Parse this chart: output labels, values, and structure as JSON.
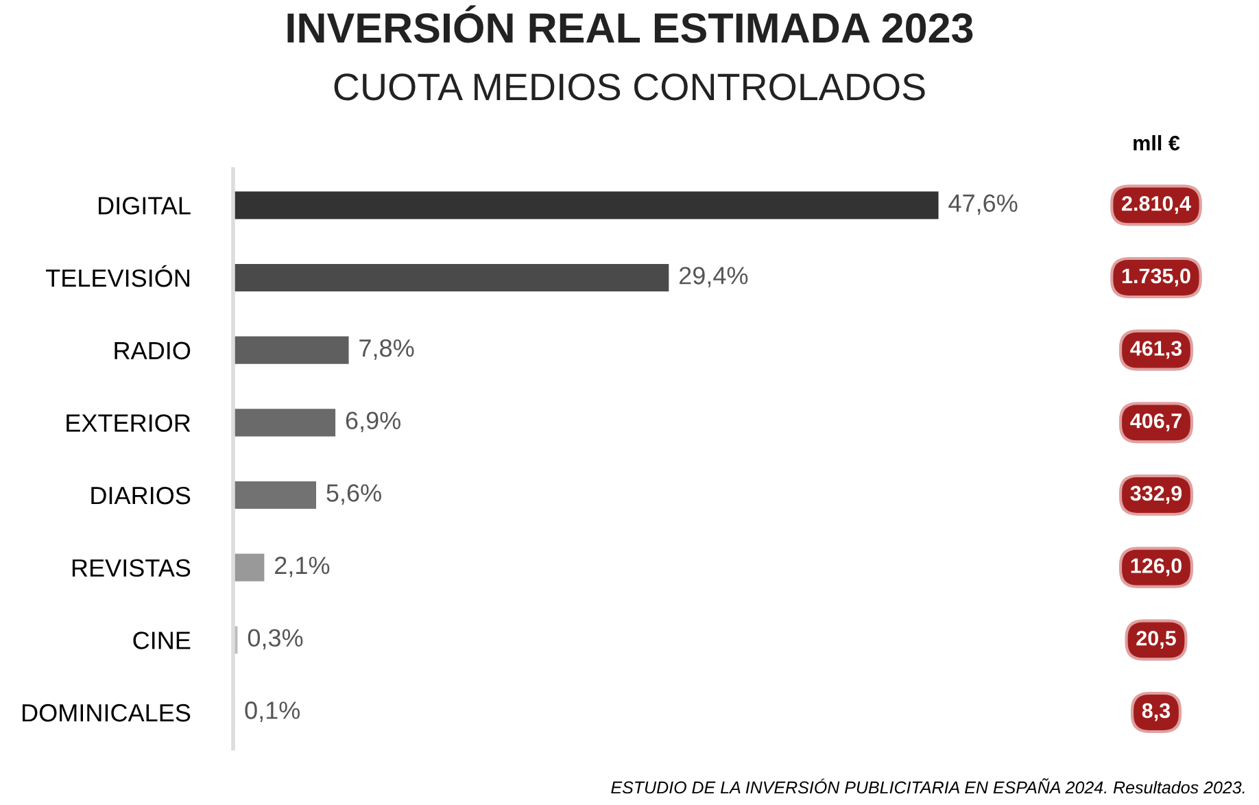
{
  "chart_data": {
    "type": "bar",
    "orientation": "horizontal",
    "title": "INVERSIÓN REAL ESTIMADA 2023",
    "subtitle": "CUOTA MEDIOS CONTROLADOS",
    "categories": [
      "DIGITAL",
      "TELEVISIÓN",
      "RADIO",
      "EXTERIOR",
      "DIARIOS",
      "REVISTAS",
      "CINE",
      "DOMINICALES"
    ],
    "values": [
      47.6,
      29.4,
      7.8,
      6.9,
      5.6,
      2.1,
      0.3,
      0.1
    ],
    "colors": [
      "#333333",
      "#4a4a4a",
      "#5f5f5f",
      "#6a6a6a",
      "#727272",
      "#999999",
      "#bdbdbd",
      "#cfcfcf"
    ],
    "value_labels": [
      "47,6%",
      "29,4%",
      "7,8%",
      "6,9%",
      "5,6%",
      "2,1%",
      "0,3%",
      "0,1%"
    ],
    "tick_labels": "y",
    "grid": false,
    "legend": false,
    "annotations": [
      "mll €",
      "2.810,4",
      "1.735,0",
      "461,3",
      "406,7",
      "332,9",
      "126,0",
      "20,5",
      "8,3",
      "ESTUDIO DE LA INVERSIÓN PUBLICITARIA EN ESPAÑA 2024. Resultados 2023."
    ]
  }
}
